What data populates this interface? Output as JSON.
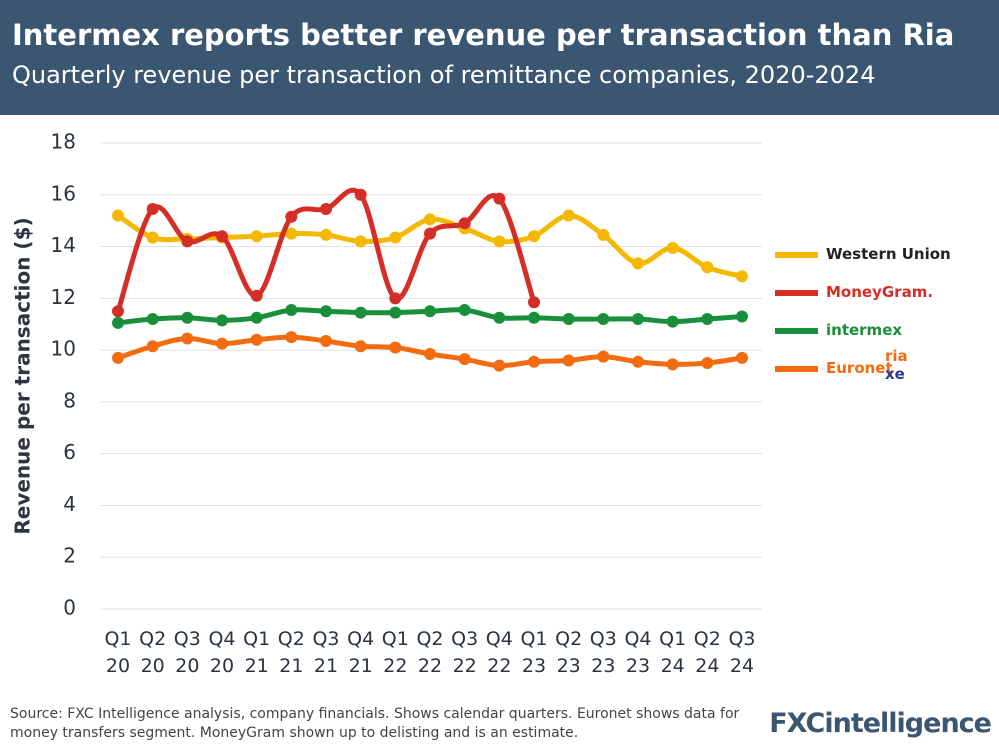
{
  "chart_data": {
    "type": "line",
    "title": "Intermex reports better revenue per transaction than Ria",
    "subtitle": "Quarterly revenue per transaction of remittance companies, 2020-2024",
    "y_label": "Revenue per transaction ($)",
    "categories": [
      "Q1 20",
      "Q2 20",
      "Q3 20",
      "Q4 20",
      "Q1 21",
      "Q2 21",
      "Q3 21",
      "Q4 21",
      "Q1 22",
      "Q2 22",
      "Q3 22",
      "Q4 22",
      "Q1 23",
      "Q2 23",
      "Q3 23",
      "Q4 23",
      "Q1 24",
      "Q2 24",
      "Q3 24"
    ],
    "series": [
      {
        "name": "Western Union",
        "color": "#f5b800",
        "values": [
          15.2,
          14.35,
          14.3,
          14.35,
          14.4,
          14.5,
          14.45,
          14.2,
          14.35,
          15.05,
          14.7,
          14.2,
          14.4,
          15.2,
          14.45,
          13.35,
          13.95,
          13.2,
          12.85
        ]
      },
      {
        "name": "MoneyGram.",
        "color": "#d42e26",
        "values": [
          11.5,
          15.45,
          14.2,
          14.4,
          12.1,
          15.15,
          15.45,
          16.0,
          12.0,
          14.5,
          14.9,
          15.85,
          11.85,
          null,
          null,
          null,
          null,
          null,
          null
        ]
      },
      {
        "name": "intermex",
        "color": "#1a8f3a",
        "values": [
          11.05,
          11.2,
          11.25,
          11.15,
          11.25,
          11.55,
          11.5,
          11.45,
          11.45,
          11.5,
          11.55,
          11.25,
          11.25,
          11.2,
          11.2,
          11.2,
          11.1,
          11.2,
          11.3
        ]
      },
      {
        "name": "Euronet",
        "sub_brands": [
          "ria",
          "xe"
        ],
        "color": "#f26b10",
        "values": [
          9.7,
          10.15,
          10.45,
          10.25,
          10.4,
          10.5,
          10.35,
          10.15,
          10.1,
          9.85,
          9.65,
          9.4,
          9.55,
          9.6,
          9.75,
          9.55,
          9.45,
          9.5,
          9.7
        ]
      }
    ],
    "ylim": [
      0,
      18
    ],
    "yticks": [
      0,
      2,
      4,
      6,
      8,
      10,
      12,
      14,
      16,
      18
    ],
    "grid": true,
    "source": "Source: FXC Intelligence analysis, company financials. Shows calendar quarters. Euronet shows data for money transfers segment. MoneyGram shown up to delisting and is an estimate.",
    "logo": "FXCintelligence"
  }
}
